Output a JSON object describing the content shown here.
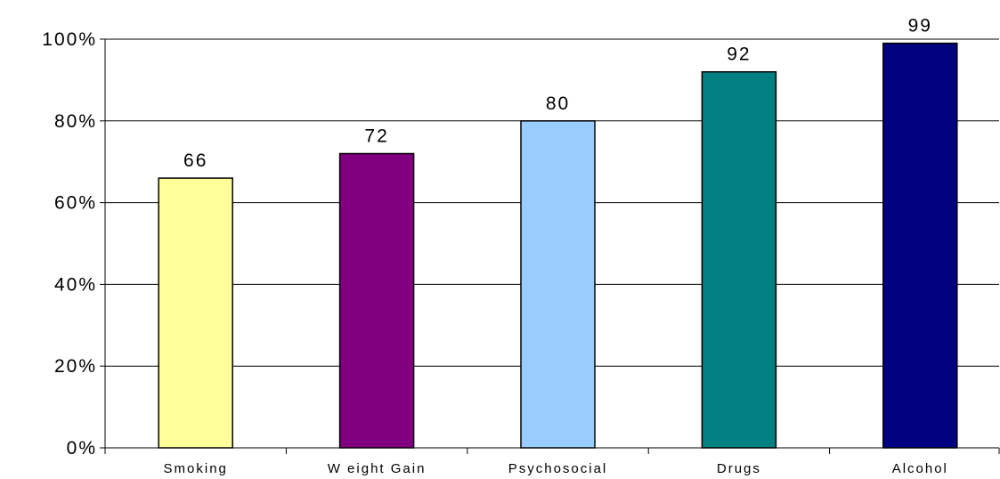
{
  "chart_data": {
    "type": "bar",
    "categories": [
      "Smoking",
      "W eight Gain",
      "Psychosocial",
      "Drugs",
      "Alcohol"
    ],
    "values": [
      66,
      72,
      80,
      92,
      99
    ],
    "data_labels": [
      "66",
      "72",
      "80",
      "92",
      "99"
    ],
    "colors": [
      "#ffff99",
      "#800080",
      "#99ccff",
      "#008080",
      "#000080"
    ],
    "bar_border_color": "#000000",
    "gridline_color": "#000000",
    "ylim": [
      0,
      100
    ],
    "y_ticks": [
      0,
      20,
      40,
      60,
      80,
      100
    ],
    "y_tick_labels": [
      "0%",
      "20%",
      "40%",
      "60%",
      "80%",
      "100%"
    ],
    "grid": true,
    "legend": false,
    "title": "",
    "xlabel": "",
    "ylabel": ""
  }
}
